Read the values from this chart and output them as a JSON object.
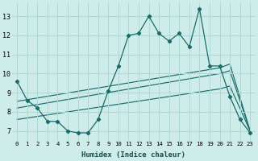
{
  "xlabel": "Humidex (Indice chaleur)",
  "bg_color": "#cdecea",
  "grid_color": "#aed8d4",
  "line_color": "#1a6b6b",
  "x": [
    0,
    1,
    2,
    3,
    4,
    5,
    6,
    7,
    8,
    9,
    10,
    11,
    12,
    13,
    14,
    15,
    16,
    17,
    18,
    19,
    20,
    21,
    22,
    23
  ],
  "y_main": [
    9.6,
    8.6,
    8.2,
    7.5,
    7.5,
    7.0,
    6.9,
    6.9,
    7.6,
    9.1,
    10.4,
    12.0,
    12.1,
    13.0,
    12.1,
    11.7,
    12.1,
    11.4,
    13.4,
    10.4,
    10.4,
    8.8,
    7.6,
    6.9
  ],
  "trend1_x": [
    0,
    20,
    21,
    23
  ],
  "trend1_y": [
    8.55,
    10.3,
    10.5,
    7.0
  ],
  "trend2_x": [
    0,
    20,
    21,
    23
  ],
  "trend2_y": [
    8.2,
    10.0,
    10.15,
    7.0
  ],
  "trend3_x": [
    0,
    20,
    21,
    23
  ],
  "trend3_y": [
    7.6,
    9.2,
    9.35,
    7.0
  ],
  "ylim": [
    6.5,
    13.7
  ],
  "yticks": [
    7,
    8,
    9,
    10,
    11,
    12,
    13
  ],
  "xlim": [
    -0.5,
    23.5
  ],
  "xticks": [
    0,
    1,
    2,
    3,
    4,
    5,
    6,
    7,
    8,
    9,
    10,
    11,
    12,
    13,
    14,
    15,
    16,
    17,
    18,
    19,
    20,
    21,
    22,
    23
  ]
}
